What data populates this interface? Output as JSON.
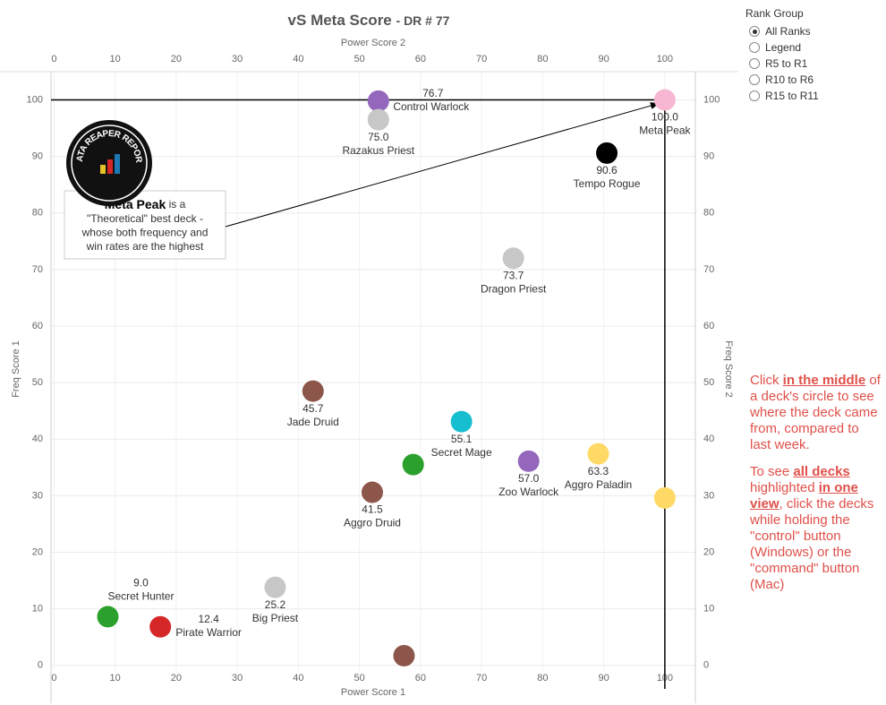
{
  "chart_data": {
    "type": "scatter",
    "title": "vS Meta Score",
    "title_suffix": "- DR # 77",
    "x_label_bottom": "Power Score 1",
    "x_label_top": "Power Score 2",
    "y_label_left": "Freq Score 1",
    "y_label_right": "Freq Score 2",
    "xlim": [
      -0.5,
      105
    ],
    "ylim": [
      -1,
      105
    ],
    "xticks": [
      0,
      10,
      20,
      30,
      40,
      50,
      60,
      70,
      80,
      90,
      100
    ],
    "yticks": [
      0,
      10,
      20,
      30,
      40,
      50,
      60,
      70,
      80,
      90,
      100
    ],
    "grid": true,
    "reference_lines": [
      {
        "axis": "y",
        "value": 100
      },
      {
        "axis": "x",
        "value": 100
      }
    ],
    "names": [
      "Control Warlock",
      "Razakus Priest",
      "Meta Peak",
      "Tempo Rogue",
      "Dragon Priest",
      "Jade Druid",
      "Secret Mage",
      null,
      "Zoo Warlock",
      "Aggro Paladin",
      null,
      "Aggro Druid",
      "Big Priest",
      "Secret Hunter",
      "Pirate Warrior",
      null
    ],
    "x": [
      53.1,
      53.1,
      100,
      90.5,
      75.2,
      42.4,
      66.7,
      58.8,
      77.7,
      89.1,
      100,
      52.1,
      36.2,
      8.8,
      17.4,
      57.3
    ],
    "values": [
      99.8,
      96.5,
      100,
      90.6,
      72.0,
      48.5,
      43.1,
      35.5,
      36.1,
      37.4,
      29.6,
      30.6,
      13.8,
      8.6,
      6.8,
      1.7
    ],
    "scores": [
      76.7,
      75,
      100,
      90.6,
      73.7,
      45.7,
      55.1,
      null,
      57,
      63.3,
      null,
      41.5,
      25.2,
      9,
      12.4,
      null
    ],
    "score_labels": [
      "76.7",
      "75.0",
      "100.0",
      "90.6",
      "73.7",
      "45.7",
      "55.1",
      null,
      "57.0",
      "63.3",
      null,
      "41.5",
      "25.2",
      "9.0",
      "12.4",
      null
    ],
    "colors": [
      "#9467bd",
      "#c7c7c7",
      "#f7b6d2",
      "#000000",
      "#c7c7c7",
      "#8c564b",
      "#17becf",
      "#2ca02c",
      "#9467bd",
      "#ffd966",
      "#ffd966",
      "#8c564b",
      "#c7c7c7",
      "#2ca02c",
      "#d62728",
      "#8c564b"
    ],
    "annotation": {
      "bold": "Meta Peak",
      "lines": [
        " is a",
        "\"Theoretical\" best deck -",
        "whose both frequency and",
        "win rates are the highest"
      ]
    },
    "logo_text": "DATA REAPER REPORT"
  },
  "filter": {
    "title": "Rank Group",
    "options": [
      "All Ranks",
      "Legend",
      "R5 to R1",
      "R10 to R6",
      "R15 to R11"
    ],
    "selected": 0
  },
  "note": [
    [
      {
        "text": "Click ",
        "bold": false
      },
      {
        "text": "in the middle",
        "bold": true
      },
      {
        "text": " of a deck's circle to see where the deck came from, compared to last week.",
        "bold": false
      }
    ],
    [
      {
        "text": "To see ",
        "bold": false
      },
      {
        "text": "all decks",
        "bold": true
      },
      {
        "text": " highlighted ",
        "bold": false
      },
      {
        "text": "in one view",
        "bold": true
      },
      {
        "text": ", click the decks while holding the \"control\" button (Windows) or the \"command\" button (Mac)",
        "bold": false
      }
    ]
  ]
}
